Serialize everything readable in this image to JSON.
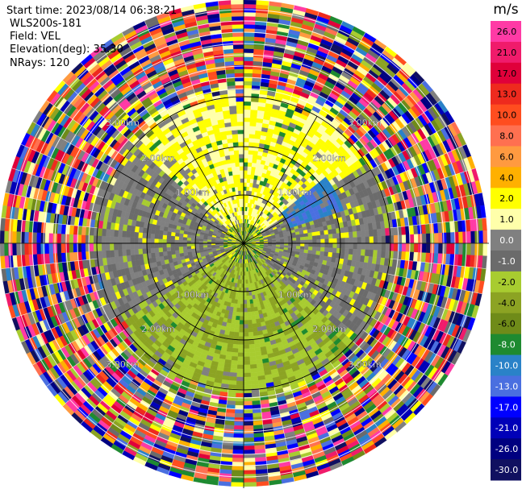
{
  "header": {
    "lines": [
      "Start time: 2023/08/14 06:38:21",
      "WLS200s-181",
      "Field: VEL",
      "Elevation(deg): 35.30",
      "NRays: 120"
    ]
  },
  "chart_data": {
    "type": "heatmap",
    "projection": "polar PPI",
    "field": "VEL",
    "units": "m/s",
    "n_rays": 120,
    "range_ring_labels": [
      "1.00km",
      "2.00km",
      "3.00km"
    ],
    "colorbar": {
      "title": "m/s",
      "tick_labels": [
        "26.0",
        "21.0",
        "17.0",
        "13.0",
        "10.0",
        "8.0",
        "6.0",
        "4.0",
        "2.0",
        "1.0",
        "0.0",
        "-1.0",
        "-2.0",
        "-4.0",
        "-6.0",
        "-8.0",
        "-10.0",
        "-13.0",
        "-17.0",
        "-21.0",
        "-26.0",
        "-30.0"
      ],
      "colors": [
        "#ff3aa5",
        "#f01b6b",
        "#e0003a",
        "#ee2a1e",
        "#ff4d1f",
        "#ff7050",
        "#ff9a40",
        "#ffb000",
        "#ffff00",
        "#ffffaa",
        "#808080",
        "#6b6b6b",
        "#a8cc30",
        "#8ca323",
        "#6f8b19",
        "#1e8a30",
        "#2a82c8",
        "#4a6fe0",
        "#0000ff",
        "#0000b8",
        "#000080",
        "#101060"
      ]
    },
    "inner_region_note": "near-zero velocities (gray/yellow/olive) within ~2 km; noisy speckle beyond",
    "sectors": {
      "north": "yellow (1 to 2 m/s)",
      "south": "olive/green (-1 to -4 m/s)",
      "east_west": "gray (~0 m/s)",
      "northeast_edge": "blue (-6 to -10 m/s)"
    }
  }
}
